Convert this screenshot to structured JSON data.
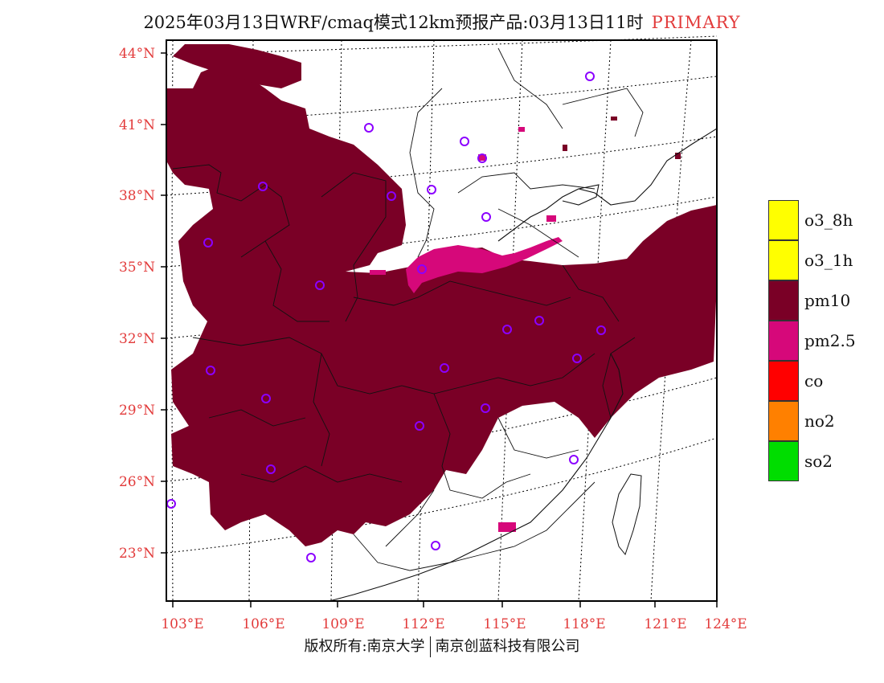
{
  "title": {
    "main": "2025年03月13日WRF/cmaq模式12km预报产品:03月13日11时",
    "tag": "PRIMARY"
  },
  "axes": {
    "lat_labels": [
      "44°N",
      "41°N",
      "38°N",
      "35°N",
      "32°N",
      "29°N",
      "26°N",
      "23°N"
    ],
    "lon_labels": [
      "103°E",
      "106°E",
      "109°E",
      "112°E",
      "115°E",
      "118°E",
      "121°E",
      "124°E"
    ]
  },
  "legend": [
    {
      "label": "o3_8h",
      "color": "#ffff00"
    },
    {
      "label": "o3_1h",
      "color": "#ffff00"
    },
    {
      "label": "pm10",
      "color": "#7a0026"
    },
    {
      "label": "pm2.5",
      "color": "#d6087a"
    },
    {
      "label": "co",
      "color": "#ff0000"
    },
    {
      "label": "no2",
      "color": "#ff8000"
    },
    {
      "label": "so2",
      "color": "#00dd00"
    }
  ],
  "colors": {
    "pm10": "#7a0026",
    "pm25": "#d6087a",
    "station": "#8b00ff",
    "axis": "#e23b3b"
  },
  "footer": {
    "left": "版权所有:南京大学",
    "right": "南京创蓝科技有限公司"
  }
}
